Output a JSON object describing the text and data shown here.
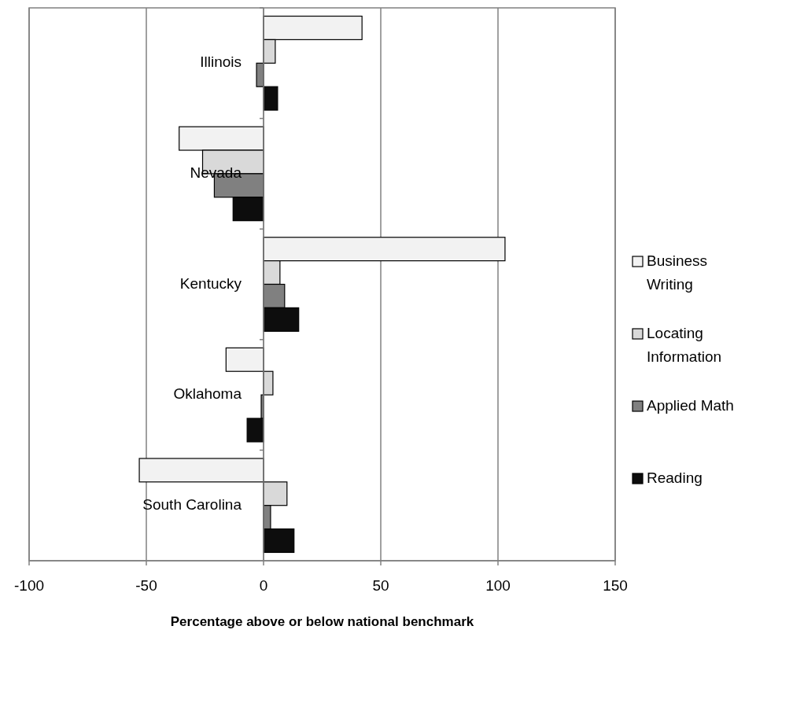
{
  "chart_data": {
    "type": "bar",
    "orientation": "horizontal",
    "xlabel": "Percentage above or below national benchmark",
    "categories": [
      "Illinois",
      "Nevada",
      "Kentucky",
      "Oklahoma",
      "South Carolina"
    ],
    "series": [
      {
        "name": "Business Writing",
        "color": "#f2f2f2",
        "values": [
          42,
          -36,
          103,
          -16,
          -53
        ]
      },
      {
        "name": "Locating Information",
        "color": "#d9d9d9",
        "values": [
          5,
          -26,
          7,
          4,
          10
        ]
      },
      {
        "name": "Applied Math",
        "color": "#808080",
        "values": [
          -3,
          -21,
          9,
          -1,
          3
        ]
      },
      {
        "name": "Reading",
        "color": "#0d0d0d",
        "values": [
          6,
          -13,
          15,
          -7,
          13
        ]
      }
    ],
    "xlim": [
      -100,
      150
    ],
    "xticks": [
      -100,
      -50,
      0,
      50,
      100,
      150
    ],
    "grid": "x",
    "legend": "right"
  }
}
